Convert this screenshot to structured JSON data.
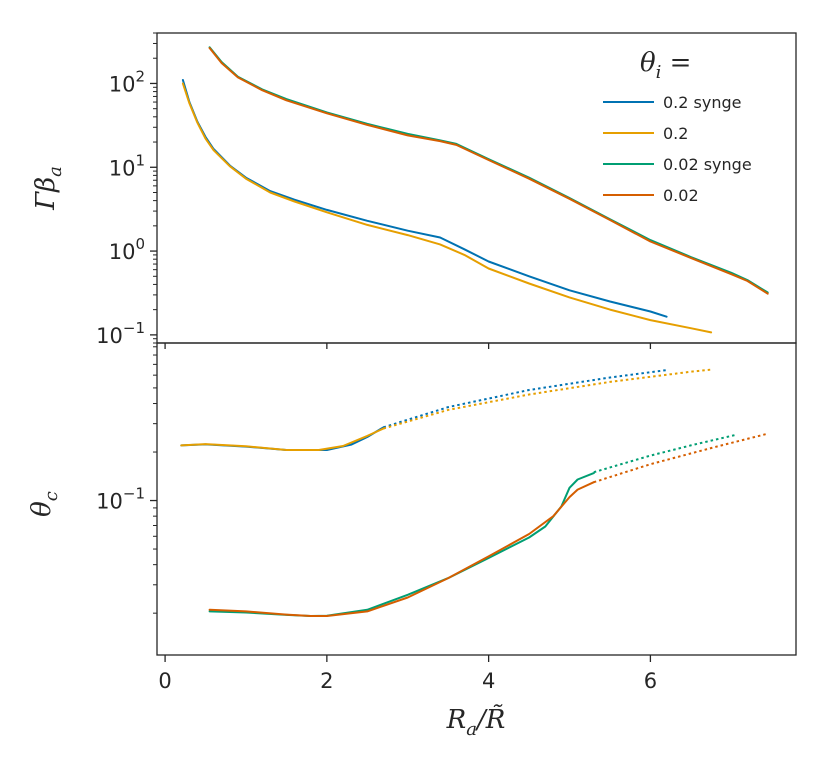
{
  "chart_data": [
    {
      "type": "line",
      "panel": "top",
      "yscale": "log",
      "ylabel": "Γβ",
      "ylabel_sub": "a",
      "xlim": [
        -0.1,
        7.8
      ],
      "ylim": [
        0.08,
        400
      ],
      "yticks": [
        {
          "value": 100,
          "label": "10",
          "exp": "2"
        },
        {
          "value": 10,
          "label": "10",
          "exp": "1"
        },
        {
          "value": 1,
          "label": "10",
          "exp": "0"
        },
        {
          "value": 0.1,
          "label": "10",
          "exp": "−1"
        }
      ],
      "legend": {
        "title": "θ",
        "title_sub": "i",
        "title_suffix": " =",
        "placement": "top-right",
        "entries": [
          {
            "label": "0.2 synge",
            "color": "#0072b2"
          },
          {
            "label": "0.2",
            "color": "#e69f00"
          },
          {
            "label": "0.02 synge",
            "color": "#009e73"
          },
          {
            "label": "0.02",
            "color": "#d55e00"
          }
        ]
      },
      "series": [
        {
          "name": "0.2 synge",
          "color": "#0072b2",
          "style": "solid",
          "points": [
            [
              0.22,
              110
            ],
            [
              0.3,
              60
            ],
            [
              0.4,
              35
            ],
            [
              0.5,
              23
            ],
            [
              0.6,
              16.5
            ],
            [
              0.8,
              10.5
            ],
            [
              1.0,
              7.5
            ],
            [
              1.3,
              5.2
            ],
            [
              1.6,
              4.1
            ],
            [
              2.0,
              3.1
            ],
            [
              2.5,
              2.3
            ],
            [
              3.0,
              1.75
            ],
            [
              3.4,
              1.45
            ],
            [
              3.7,
              1.05
            ],
            [
              4.0,
              0.75
            ],
            [
              4.5,
              0.5
            ],
            [
              5.0,
              0.34
            ],
            [
              5.5,
              0.25
            ],
            [
              6.0,
              0.19
            ],
            [
              6.2,
              0.165
            ]
          ]
        },
        {
          "name": "0.2",
          "color": "#e69f00",
          "style": "solid",
          "points": [
            [
              0.22,
              100
            ],
            [
              0.3,
              58
            ],
            [
              0.4,
              34
            ],
            [
              0.5,
              22
            ],
            [
              0.6,
              16
            ],
            [
              0.8,
              10.3
            ],
            [
              1.0,
              7.3
            ],
            [
              1.3,
              5.0
            ],
            [
              1.6,
              3.9
            ],
            [
              2.0,
              2.9
            ],
            [
              2.5,
              2.05
            ],
            [
              3.0,
              1.55
            ],
            [
              3.4,
              1.2
            ],
            [
              3.7,
              0.9
            ],
            [
              4.0,
              0.62
            ],
            [
              4.5,
              0.41
            ],
            [
              5.0,
              0.28
            ],
            [
              5.5,
              0.2
            ],
            [
              6.0,
              0.15
            ],
            [
              6.5,
              0.12
            ],
            [
              6.75,
              0.107
            ]
          ]
        },
        {
          "name": "0.02 synge",
          "color": "#009e73",
          "style": "solid",
          "points": [
            [
              0.55,
              270
            ],
            [
              0.7,
              180
            ],
            [
              0.9,
              120
            ],
            [
              1.2,
              85
            ],
            [
              1.5,
              65
            ],
            [
              2.0,
              45
            ],
            [
              2.5,
              33
            ],
            [
              3.0,
              25
            ],
            [
              3.4,
              21
            ],
            [
              3.6,
              19
            ],
            [
              4.0,
              12.5
            ],
            [
              4.5,
              7.5
            ],
            [
              5.0,
              4.3
            ],
            [
              5.5,
              2.4
            ],
            [
              6.0,
              1.35
            ],
            [
              6.5,
              0.85
            ],
            [
              7.0,
              0.55
            ],
            [
              7.2,
              0.45
            ],
            [
              7.45,
              0.32
            ]
          ]
        },
        {
          "name": "0.02",
          "color": "#d55e00",
          "style": "solid",
          "points": [
            [
              0.55,
              265
            ],
            [
              0.7,
              175
            ],
            [
              0.9,
              118
            ],
            [
              1.2,
              83
            ],
            [
              1.5,
              63
            ],
            [
              2.0,
              44
            ],
            [
              2.5,
              32
            ],
            [
              3.0,
              24
            ],
            [
              3.4,
              20.5
            ],
            [
              3.6,
              18.5
            ],
            [
              4.0,
              12.2
            ],
            [
              4.5,
              7.3
            ],
            [
              5.0,
              4.2
            ],
            [
              5.5,
              2.35
            ],
            [
              6.0,
              1.3
            ],
            [
              6.5,
              0.83
            ],
            [
              7.0,
              0.53
            ],
            [
              7.2,
              0.44
            ],
            [
              7.45,
              0.31
            ]
          ]
        }
      ]
    },
    {
      "type": "line",
      "panel": "bottom",
      "yscale": "log",
      "ylabel": "θ",
      "ylabel_sub": "c",
      "xlabel": "R",
      "xlabel_sub": "a",
      "xlabel_den": "R̃",
      "xlim": [
        -0.1,
        7.8
      ],
      "ylim": [
        0.011,
        0.95
      ],
      "xticks": [
        0,
        2,
        4,
        6
      ],
      "yticks": [
        {
          "value": 0.1,
          "label": "10",
          "exp": "−1"
        }
      ],
      "series": [
        {
          "name": "0.2 synge",
          "color": "#0072b2",
          "style": "solid",
          "points": [
            [
              0.2,
              0.22
            ],
            [
              0.5,
              0.223
            ],
            [
              1.0,
              0.216
            ],
            [
              1.5,
              0.206
            ],
            [
              2.0,
              0.206
            ],
            [
              2.3,
              0.222
            ],
            [
              2.5,
              0.248
            ],
            [
              2.7,
              0.285
            ]
          ]
        },
        {
          "name": "0.2 synge (dotted)",
          "color": "#0072b2",
          "style": "dotted",
          "points": [
            [
              2.7,
              0.285
            ],
            [
              3.5,
              0.38
            ],
            [
              4.5,
              0.485
            ],
            [
              5.5,
              0.58
            ],
            [
              6.2,
              0.645
            ]
          ]
        },
        {
          "name": "0.2",
          "color": "#e69f00",
          "style": "solid",
          "points": [
            [
              0.2,
              0.22
            ],
            [
              0.5,
              0.224
            ],
            [
              1.0,
              0.217
            ],
            [
              1.5,
              0.206
            ],
            [
              1.9,
              0.206
            ],
            [
              2.2,
              0.218
            ],
            [
              2.5,
              0.252
            ],
            [
              2.7,
              0.28
            ]
          ]
        },
        {
          "name": "0.2 (dotted)",
          "color": "#e69f00",
          "style": "dotted",
          "points": [
            [
              2.7,
              0.28
            ],
            [
              3.5,
              0.365
            ],
            [
              4.5,
              0.455
            ],
            [
              5.5,
              0.545
            ],
            [
              6.5,
              0.63
            ],
            [
              6.75,
              0.65
            ]
          ]
        },
        {
          "name": "0.02 synge",
          "color": "#009e73",
          "style": "solid",
          "points": [
            [
              0.55,
              0.0205
            ],
            [
              1.0,
              0.0202
            ],
            [
              1.5,
              0.0195
            ],
            [
              1.8,
              0.0192
            ],
            [
              2.0,
              0.0193
            ],
            [
              2.5,
              0.021
            ],
            [
              3.0,
              0.026
            ],
            [
              3.5,
              0.033
            ],
            [
              4.0,
              0.044
            ],
            [
              4.5,
              0.059
            ],
            [
              4.7,
              0.069
            ],
            [
              4.9,
              0.092
            ],
            [
              5.0,
              0.12
            ],
            [
              5.1,
              0.135
            ],
            [
              5.3,
              0.148
            ]
          ]
        },
        {
          "name": "0.02 synge (dotted)",
          "color": "#009e73",
          "style": "dotted",
          "points": [
            [
              5.3,
              0.15
            ],
            [
              6.0,
              0.19
            ],
            [
              6.5,
              0.22
            ],
            [
              7.05,
              0.255
            ]
          ]
        },
        {
          "name": "0.02",
          "color": "#d55e00",
          "style": "solid",
          "points": [
            [
              0.55,
              0.021
            ],
            [
              1.0,
              0.0205
            ],
            [
              1.5,
              0.0196
            ],
            [
              1.8,
              0.0192
            ],
            [
              2.0,
              0.0192
            ],
            [
              2.5,
              0.0205
            ],
            [
              3.0,
              0.025
            ],
            [
              3.5,
              0.033
            ],
            [
              4.0,
              0.045
            ],
            [
              4.5,
              0.062
            ],
            [
              4.8,
              0.08
            ],
            [
              5.0,
              0.105
            ],
            [
              5.1,
              0.117
            ],
            [
              5.3,
              0.13
            ]
          ]
        },
        {
          "name": "0.02 (dotted)",
          "color": "#d55e00",
          "style": "dotted",
          "points": [
            [
              5.3,
              0.13
            ],
            [
              6.0,
              0.168
            ],
            [
              6.8,
              0.215
            ],
            [
              7.45,
              0.26
            ]
          ]
        }
      ]
    }
  ]
}
